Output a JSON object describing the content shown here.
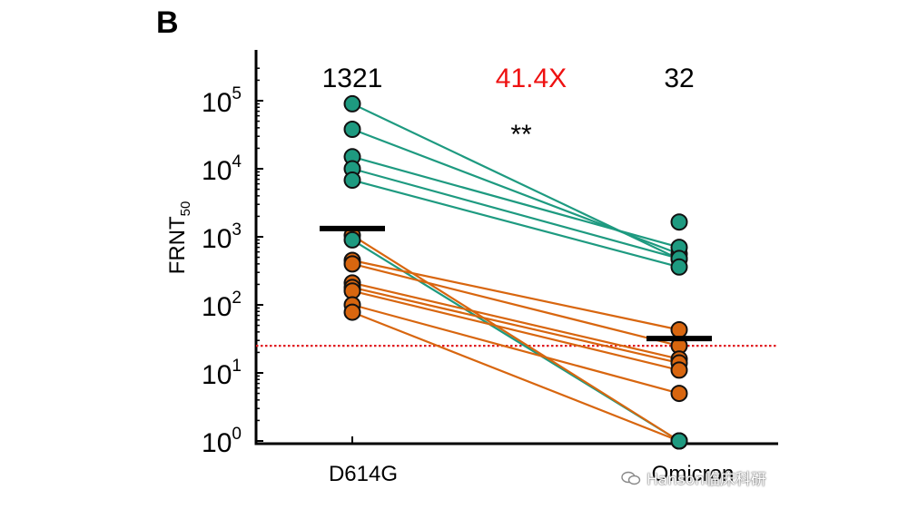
{
  "panel_label": "B",
  "watermark": {
    "text": "Hanson临床科研",
    "icon": "wechat-icon"
  },
  "chart_data": {
    "type": "scatter",
    "subtype": "paired-dot-plot",
    "ylabel": "FRNT",
    "ylabel_subscript": "50",
    "yscale": "log",
    "ylim": [
      1,
      300000
    ],
    "yticks": [
      {
        "value": 1,
        "base": "10",
        "exp": "0"
      },
      {
        "value": 10,
        "base": "10",
        "exp": "1"
      },
      {
        "value": 100,
        "base": "10",
        "exp": "2"
      },
      {
        "value": 1000,
        "base": "10",
        "exp": "3"
      },
      {
        "value": 10000,
        "base": "10",
        "exp": "4"
      },
      {
        "value": 100000,
        "base": "10",
        "exp": "5"
      }
    ],
    "categories": [
      "D614G",
      "Omicron"
    ],
    "geometric_means": [
      "1321",
      "32"
    ],
    "gmt_values": [
      1321,
      32
    ],
    "fold_change": "41.4X",
    "significance": "**",
    "threshold": 25,
    "colors": {
      "green": "#1e9a80",
      "orange": "#d8660f",
      "threshold": "#e0191f",
      "fold": "#ee1111"
    },
    "pairs": [
      {
        "group": "green",
        "d614g": 90000,
        "omicron": 470
      },
      {
        "group": "green",
        "d614g": 38000,
        "omicron": 560
      },
      {
        "group": "green",
        "d614g": 15000,
        "omicron": 700
      },
      {
        "group": "green",
        "d614g": 10000,
        "omicron": 480
      },
      {
        "group": "green",
        "d614g": 6800,
        "omicron": 360
      },
      {
        "group": "green",
        "d614g": 900,
        "omicron": 1
      },
      {
        "group": "green",
        "d614g": null,
        "omicron": 1650
      },
      {
        "group": "orange",
        "d614g": 1050,
        "omicron": 1
      },
      {
        "group": "orange",
        "d614g": 450,
        "omicron": 43
      },
      {
        "group": "orange",
        "d614g": 400,
        "omicron": 25
      },
      {
        "group": "orange",
        "d614g": 210,
        "omicron": 16
      },
      {
        "group": "orange",
        "d614g": 180,
        "omicron": 14
      },
      {
        "group": "orange",
        "d614g": 160,
        "omicron": 11
      },
      {
        "group": "orange",
        "d614g": 100,
        "omicron": 5
      },
      {
        "group": "orange",
        "d614g": 78,
        "omicron": 1
      }
    ]
  }
}
